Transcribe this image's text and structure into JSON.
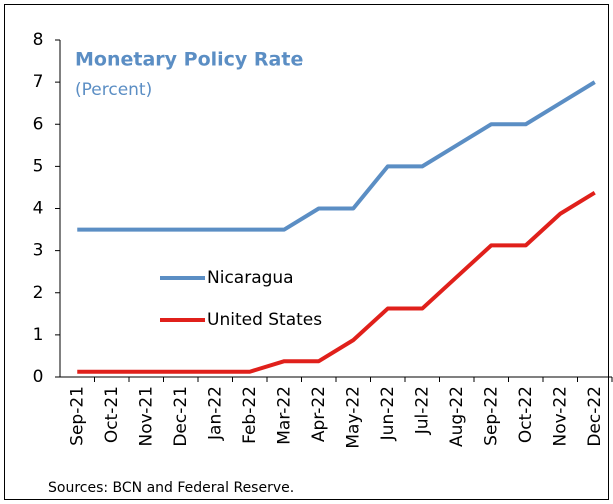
{
  "chart_data": {
    "type": "line",
    "title": "Monetary Policy Rate",
    "subtitle": "(Percent)",
    "note": "Sources: BCN and Federal Reserve.",
    "categories": [
      "Sep-21",
      "Oct-21",
      "Nov-21",
      "Dec-21",
      "Jan-22",
      "Feb-22",
      "Mar-22",
      "Apr-22",
      "May-22",
      "Jun-22",
      "Jul-22",
      "Aug-22",
      "Sep-22",
      "Oct-22",
      "Nov-22",
      "Dec-22"
    ],
    "series": [
      {
        "name": "Nicaragua",
        "color": "#5b8ec4",
        "values": [
          3.5,
          3.5,
          3.5,
          3.5,
          3.5,
          3.5,
          3.5,
          4,
          4,
          5,
          5,
          5.5,
          6,
          6,
          6.5,
          7
        ]
      },
      {
        "name": "United States",
        "color": "#e0201b",
        "values": [
          0.125,
          0.125,
          0.125,
          0.125,
          0.125,
          0.125,
          0.375,
          0.375,
          0.875,
          1.625,
          1.625,
          2.375,
          3.125,
          3.125,
          3.875,
          4.375
        ]
      }
    ],
    "ylim": [
      0,
      8
    ],
    "yticks": [
      0,
      1,
      2,
      3,
      4,
      5,
      6,
      7,
      8
    ],
    "grid": false
  }
}
